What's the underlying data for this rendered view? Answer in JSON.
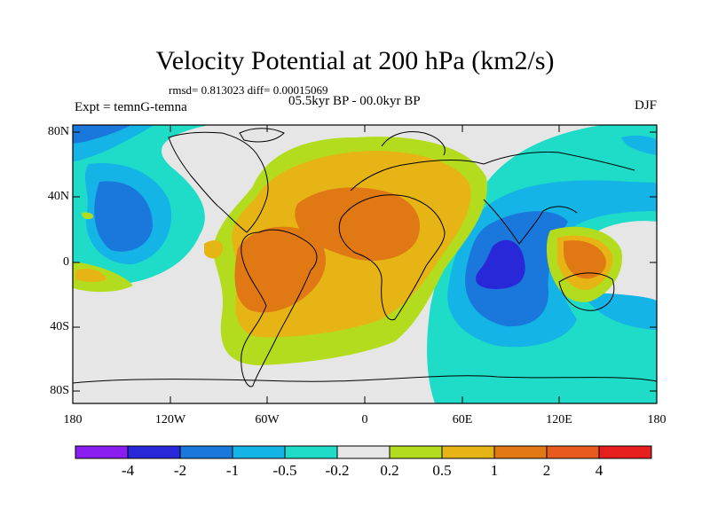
{
  "title": "Velocity Potential at 200 hPa (km2/s)",
  "stats_text": "rmsd= 0.813023 diff= 0.00015069",
  "period_text": "05.5kyr BP - 00.0kyr BP",
  "experiment_text": "Expt = temnG-temna",
  "season": "DJF",
  "lat_labels": [
    "80N",
    "40N",
    "0",
    "40S",
    "80S"
  ],
  "lon_labels": [
    "180",
    "120W",
    "60W",
    "0",
    "60E",
    "120E",
    "180"
  ],
  "colorbar": {
    "colors": [
      "#8a1ef0",
      "#2828d8",
      "#1a78dc",
      "#14b4e6",
      "#1edcc8",
      "#e6e6e6",
      "#b4dc1e",
      "#e6b414",
      "#e07814",
      "#e85a1e",
      "#e61e1e"
    ],
    "labels": [
      "-4",
      "-2",
      "-1",
      "-0.5",
      "-0.2",
      "0.2",
      "0.5",
      "1",
      "2",
      "4"
    ]
  }
}
